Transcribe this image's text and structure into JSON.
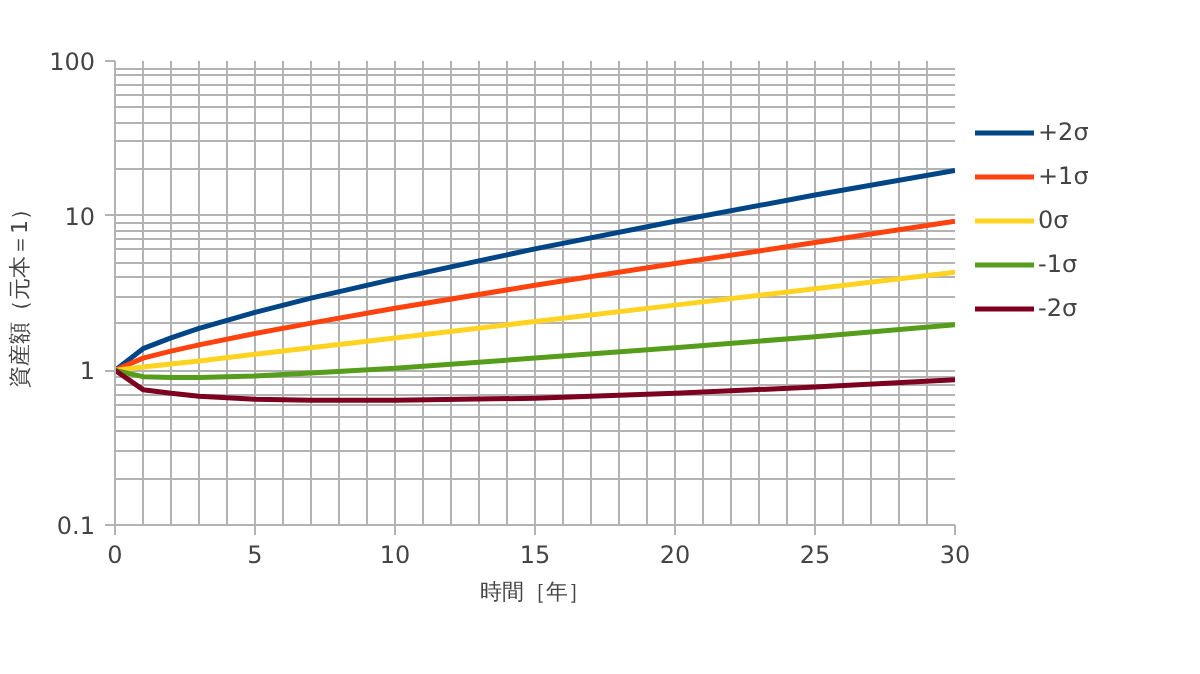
{
  "chart_data": {
    "type": "line",
    "xlabel": "時間［年］",
    "ylabel": "資産額（元本＝1）",
    "x": [
      0,
      1,
      2,
      3,
      5,
      7,
      10,
      15,
      20,
      25,
      30
    ],
    "series": [
      {
        "name": "+2σ",
        "color": "#004586",
        "values": [
          1,
          1.38,
          1.62,
          1.87,
          2.37,
          2.93,
          3.9,
          6.1,
          9.2,
          13.6,
          19.6
        ]
      },
      {
        "name": "+1σ",
        "color": "#ff420e",
        "values": [
          1,
          1.2,
          1.33,
          1.46,
          1.73,
          2.02,
          2.52,
          3.55,
          4.9,
          6.7,
          9.2
        ]
      },
      {
        "name": "0σ",
        "color": "#ffd320",
        "values": [
          1,
          1.05,
          1.1,
          1.15,
          1.27,
          1.4,
          1.62,
          2.07,
          2.64,
          3.37,
          4.3
        ]
      },
      {
        "name": "-1σ",
        "color": "#579d1c",
        "values": [
          1,
          0.91,
          0.9,
          0.9,
          0.92,
          0.96,
          1.03,
          1.2,
          1.4,
          1.65,
          1.97
        ]
      },
      {
        "name": "-2σ",
        "color": "#7e0021",
        "values": [
          1,
          0.75,
          0.71,
          0.68,
          0.65,
          0.64,
          0.64,
          0.66,
          0.71,
          0.78,
          0.87
        ]
      }
    ],
    "xlim": [
      0,
      30
    ],
    "ylim": [
      0.1,
      100
    ],
    "xticks": [
      0,
      5,
      10,
      15,
      20,
      25,
      30
    ],
    "yticks": [
      0.1,
      1,
      10,
      100
    ],
    "log": "y",
    "grid": true,
    "legend": "right",
    "marker": "none",
    "line_style": "solid"
  }
}
